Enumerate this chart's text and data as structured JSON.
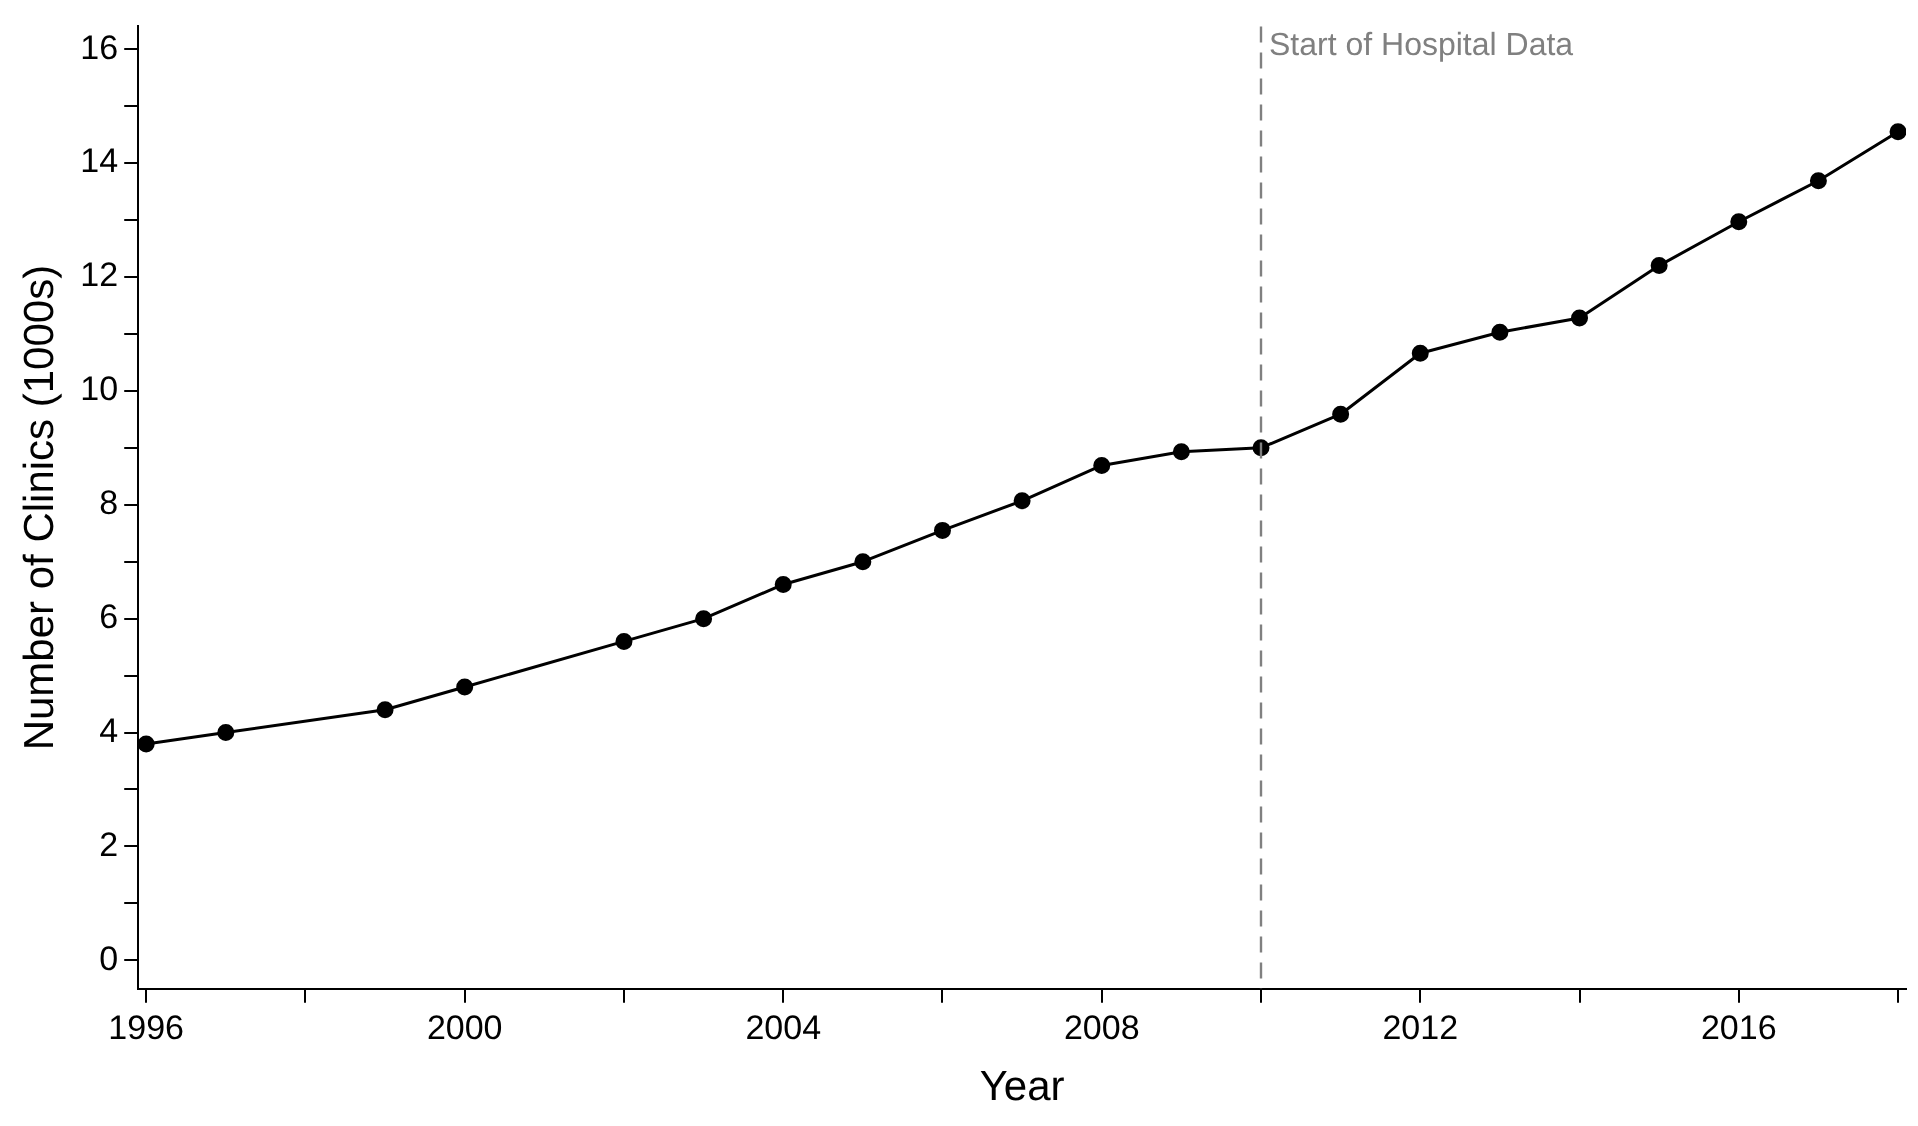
{
  "chart_data": {
    "type": "line",
    "xlabel": "Year",
    "ylabel": "Number of Clinics (1000s)",
    "x": [
      1996,
      1997,
      1999,
      2000,
      2002,
      2003,
      2004,
      2005,
      2006,
      2007,
      2008,
      2009,
      2010,
      2011,
      2012,
      2013,
      2014,
      2015,
      2016,
      2017,
      2018
    ],
    "series": [
      {
        "color": "#000000",
        "values": [
          3.8,
          4.0,
          4.4,
          4.8,
          5.6,
          6.0,
          6.6,
          7.0,
          7.55,
          8.07,
          8.69,
          8.93,
          9.0,
          9.59,
          10.66,
          11.03,
          11.28,
          12.2,
          12.97,
          13.69,
          14.55
        ]
      }
    ],
    "xlim": [
      1995.9,
      2018.1
    ],
    "xticks": [
      1996,
      {
        "value": 1998,
        "label": null
      },
      2000,
      {
        "value": 2002,
        "label": null
      },
      2004,
      {
        "value": 2006,
        "label": null
      },
      2008,
      {
        "value": 2010,
        "label": null
      },
      2012,
      {
        "value": 2014,
        "label": null
      },
      2016,
      {
        "value": 2018,
        "label": null
      }
    ],
    "ylim": [
      -0.5,
      16.4
    ],
    "yticks": [
      0,
      {
        "value": 1,
        "label": null
      },
      2,
      {
        "value": 3,
        "label": null
      },
      4,
      {
        "value": 5,
        "label": null
      },
      6,
      {
        "value": 7,
        "label": null
      },
      8,
      {
        "value": 9,
        "label": null
      },
      10,
      {
        "value": 11,
        "label": null
      },
      12,
      {
        "value": 13,
        "label": null
      },
      14,
      {
        "value": 15,
        "label": null
      },
      16
    ],
    "ref_lines": [
      {
        "axis": "x",
        "value": 2010,
        "label": "Start of Hospital Data",
        "color": "#808080",
        "line_style": "dashed"
      }
    ],
    "grid": false,
    "legend": false,
    "marker": "circle",
    "line_style": "solid"
  }
}
